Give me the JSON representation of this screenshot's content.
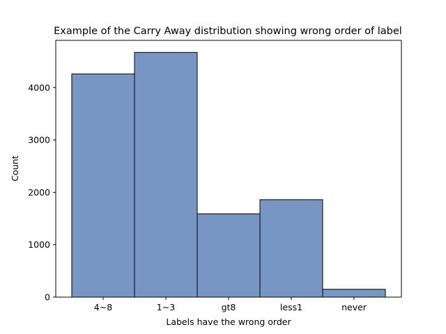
{
  "chart_data": {
    "type": "bar",
    "title": "Example of the Carry Away distribution showing wrong order of label",
    "xlabel": "Labels have the wrong order",
    "ylabel": "Count",
    "categories": [
      "4~8",
      "1~3",
      "gt8",
      "less1",
      "never"
    ],
    "values": [
      4260,
      4670,
      1590,
      1860,
      150
    ],
    "ylim": [
      0,
      4900
    ],
    "yticks": [
      0,
      1000,
      2000,
      3000,
      4000
    ],
    "grid": false,
    "bar_color": "#7896c4",
    "edge_color": "#000000"
  }
}
